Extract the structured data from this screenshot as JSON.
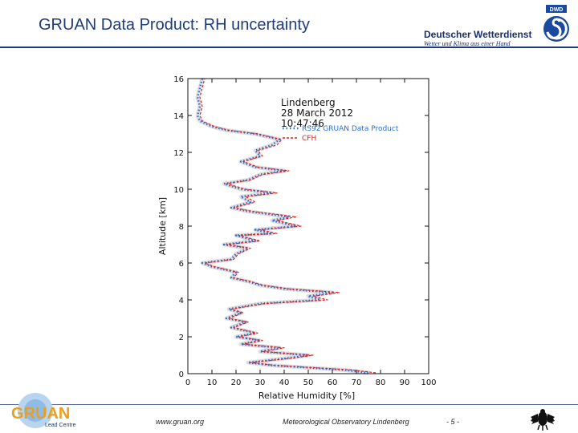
{
  "header": {
    "title": "GRUAN Data Product: RH uncertainty",
    "dwd_name": "Deutscher Wetterdienst",
    "dwd_slogan": "Wetter und Klima aus einer Hand",
    "dwd_mark": "DWD"
  },
  "footer": {
    "gruan_logo": "GRUAN",
    "gruan_sub": "Lead Centre",
    "website": "www.gruan.org",
    "observatory": "Meteorological Observatory Lindenberg",
    "page": "- 5 -"
  },
  "colors": {
    "title": "#1f3c78",
    "rs92": "#2a6fd6",
    "cfh": "#e02020"
  },
  "chart_data": {
    "type": "line",
    "xlabel": "Relative Humidity [%]",
    "ylabel": "Altitude [km]",
    "xlim": [
      0,
      100
    ],
    "ylim": [
      0,
      16
    ],
    "xticks": [
      "0",
      "10",
      "20",
      "30",
      "40",
      "50",
      "60",
      "70",
      "80",
      "90",
      "100"
    ],
    "yticks": [
      "0",
      "2",
      "4",
      "6",
      "8",
      "10",
      "12",
      "14",
      "16"
    ],
    "annotation": [
      "Lindenberg",
      "28 March 2012",
      "10:47:46"
    ],
    "legend_position": "top-right",
    "series": [
      {
        "name": "RS92 GRUAN Data Product",
        "style": "dotted",
        "points": [
          [
            75,
            0.05
          ],
          [
            65,
            0.2
          ],
          [
            35,
            0.45
          ],
          [
            25,
            0.6
          ],
          [
            42,
            0.85
          ],
          [
            50,
            1.0
          ],
          [
            30,
            1.2
          ],
          [
            38,
            1.4
          ],
          [
            22,
            1.6
          ],
          [
            30,
            1.8
          ],
          [
            20,
            2.0
          ],
          [
            28,
            2.2
          ],
          [
            18,
            2.5
          ],
          [
            24,
            2.8
          ],
          [
            16,
            3.0
          ],
          [
            22,
            3.3
          ],
          [
            17,
            3.5
          ],
          [
            30,
            3.8
          ],
          [
            55,
            4.0
          ],
          [
            50,
            4.2
          ],
          [
            60,
            4.4
          ],
          [
            40,
            4.6
          ],
          [
            30,
            4.8
          ],
          [
            25,
            5.0
          ],
          [
            18,
            5.2
          ],
          [
            20,
            5.5
          ],
          [
            10,
            5.8
          ],
          [
            6,
            6.0
          ],
          [
            18,
            6.2
          ],
          [
            20,
            6.5
          ],
          [
            25,
            6.8
          ],
          [
            15,
            7.0
          ],
          [
            28,
            7.2
          ],
          [
            20,
            7.5
          ],
          [
            35,
            7.6
          ],
          [
            28,
            7.8
          ],
          [
            45,
            8.0
          ],
          [
            35,
            8.3
          ],
          [
            42,
            8.5
          ],
          [
            25,
            8.8
          ],
          [
            18,
            9.0
          ],
          [
            26,
            9.3
          ],
          [
            22,
            9.6
          ],
          [
            35,
            9.8
          ],
          [
            22,
            10.0
          ],
          [
            15,
            10.3
          ],
          [
            25,
            10.5
          ],
          [
            30,
            10.8
          ],
          [
            40,
            11.0
          ],
          [
            28,
            11.2
          ],
          [
            22,
            11.5
          ],
          [
            30,
            11.8
          ],
          [
            28,
            12.1
          ],
          [
            35,
            12.4
          ],
          [
            38,
            12.7
          ],
          [
            28,
            13.0
          ],
          [
            16,
            13.2
          ],
          [
            10,
            13.4
          ],
          [
            5,
            13.7
          ],
          [
            4,
            14.0
          ],
          [
            5,
            14.5
          ],
          [
            4,
            15.0
          ],
          [
            5,
            15.5
          ],
          [
            6,
            16.0
          ]
        ]
      },
      {
        "name": "CFH",
        "style": "dashed",
        "points": [
          [
            78,
            0.05
          ],
          [
            68,
            0.2
          ],
          [
            36,
            0.45
          ],
          [
            26,
            0.6
          ],
          [
            44,
            0.85
          ],
          [
            52,
            1.0
          ],
          [
            31,
            1.2
          ],
          [
            40,
            1.4
          ],
          [
            23,
            1.6
          ],
          [
            31,
            1.8
          ],
          [
            21,
            2.0
          ],
          [
            29,
            2.2
          ],
          [
            19,
            2.5
          ],
          [
            25,
            2.8
          ],
          [
            17,
            3.0
          ],
          [
            23,
            3.3
          ],
          [
            18,
            3.5
          ],
          [
            32,
            3.8
          ],
          [
            58,
            4.0
          ],
          [
            52,
            4.2
          ],
          [
            63,
            4.4
          ],
          [
            42,
            4.6
          ],
          [
            31,
            4.8
          ],
          [
            26,
            5.0
          ],
          [
            19,
            5.2
          ],
          [
            21,
            5.5
          ],
          [
            11,
            5.8
          ],
          [
            7,
            6.0
          ],
          [
            19,
            6.2
          ],
          [
            21,
            6.5
          ],
          [
            26,
            6.8
          ],
          [
            16,
            7.0
          ],
          [
            30,
            7.2
          ],
          [
            21,
            7.5
          ],
          [
            37,
            7.6
          ],
          [
            30,
            7.8
          ],
          [
            47,
            8.0
          ],
          [
            37,
            8.3
          ],
          [
            45,
            8.5
          ],
          [
            27,
            8.8
          ],
          [
            19,
            9.0
          ],
          [
            28,
            9.3
          ],
          [
            24,
            9.6
          ],
          [
            37,
            9.8
          ],
          [
            24,
            10.0
          ],
          [
            16,
            10.3
          ],
          [
            26,
            10.5
          ],
          [
            31,
            10.8
          ],
          [
            42,
            11.0
          ],
          [
            29,
            11.2
          ],
          [
            23,
            11.5
          ],
          [
            31,
            11.8
          ],
          [
            29,
            12.1
          ],
          [
            37,
            12.4
          ],
          [
            39,
            12.7
          ],
          [
            29,
            13.0
          ],
          [
            17,
            13.2
          ],
          [
            11,
            13.4
          ],
          [
            6,
            13.7
          ],
          [
            5,
            14.0
          ],
          [
            6,
            14.5
          ],
          [
            5,
            15.0
          ],
          [
            6,
            15.5
          ],
          [
            7,
            16.0
          ]
        ]
      }
    ]
  }
}
